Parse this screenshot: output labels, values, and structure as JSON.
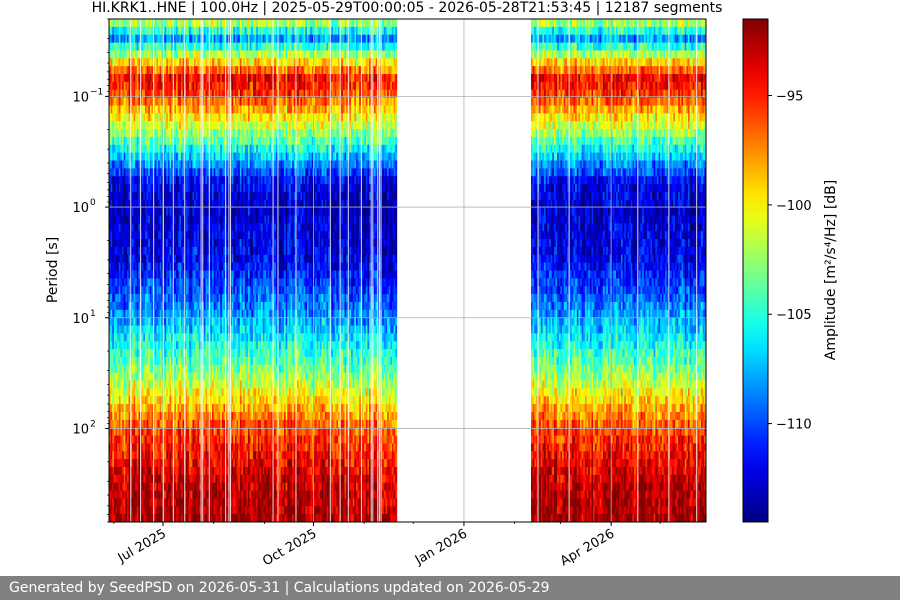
{
  "chart_data": {
    "type": "heatmap",
    "title": "HI.KRK1..HNE | 100.0Hz | 2025-05-29T00:00:05 - 2026-05-28T21:53:45 | 12187 segments",
    "xlabel": "",
    "ylabel": "Period [s]",
    "x_range": [
      "2025-05-29",
      "2026-05-29"
    ],
    "x_ticks": [
      {
        "date": "2025-07-01",
        "label": "Jul 2025"
      },
      {
        "date": "2025-10-01",
        "label": "Oct 2025"
      },
      {
        "date": "2026-01-01",
        "label": "Jan 2026"
      },
      {
        "date": "2026-04-01",
        "label": "Apr 2026"
      }
    ],
    "y_scale": "log",
    "y_range": [
      0.02,
      700
    ],
    "y_inverted": true,
    "y_ticks": [
      {
        "value": 0.1,
        "base": "10",
        "exp": "−1"
      },
      {
        "value": 1,
        "base": "10",
        "exp": "0"
      },
      {
        "value": 10,
        "base": "10",
        "exp": "1"
      },
      {
        "value": 100,
        "base": "10",
        "exp": "2"
      }
    ],
    "data_gap": [
      "2025-11-21",
      "2026-02-11"
    ],
    "period_profile": [
      {
        "period": 0.02,
        "amplitude": -101
      },
      {
        "period": 0.03,
        "amplitude": -108
      },
      {
        "period": 0.05,
        "amplitude": -99
      },
      {
        "period": 0.07,
        "amplitude": -94
      },
      {
        "period": 0.1,
        "amplitude": -96
      },
      {
        "period": 0.2,
        "amplitude": -102
      },
      {
        "period": 0.35,
        "amplitude": -107
      },
      {
        "period": 0.6,
        "amplitude": -112
      },
      {
        "period": 1,
        "amplitude": -113
      },
      {
        "period": 3,
        "amplitude": -112
      },
      {
        "period": 10,
        "amplitude": -108
      },
      {
        "period": 30,
        "amplitude": -103
      },
      {
        "period": 100,
        "amplitude": -96
      },
      {
        "period": 300,
        "amplitude": -93
      },
      {
        "period": 700,
        "amplitude": -92
      }
    ],
    "colorbar": {
      "label": "Amplitude [m²/s⁴/Hz] [dB]",
      "colormap": "jet",
      "range": [
        -114.5,
        -91.5
      ],
      "ticks": [
        {
          "value": -95,
          "label": "−95"
        },
        {
          "value": -100,
          "label": "−100"
        },
        {
          "value": -105,
          "label": "−105"
        },
        {
          "value": -110,
          "label": "−110"
        }
      ]
    },
    "grid": true
  },
  "footer": {
    "text": "Generated by SeedPSD on 2026-05-31 | Calculations updated on 2026-05-29"
  }
}
